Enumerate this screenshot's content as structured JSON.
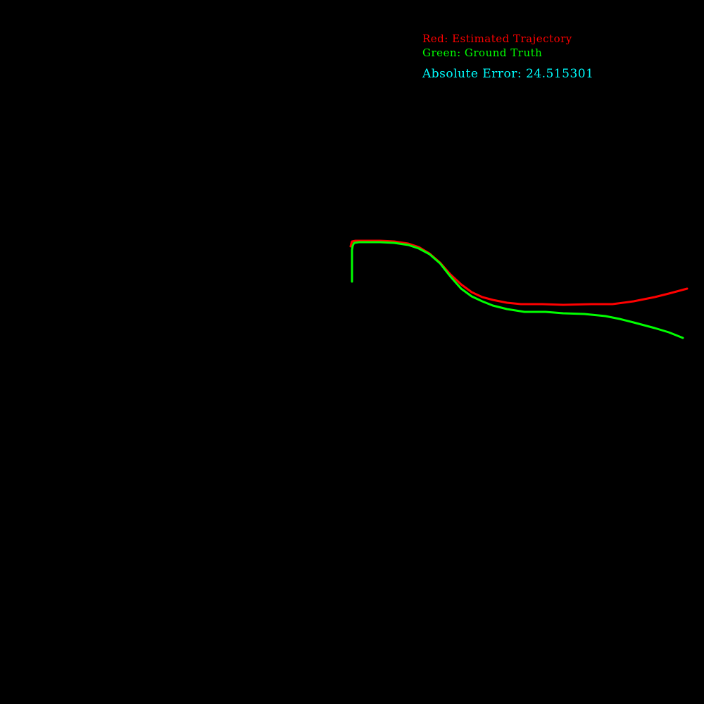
{
  "chart_data": {
    "type": "line",
    "title": "",
    "xlabel": "",
    "ylabel": "",
    "background": "#000000",
    "legend": {
      "placement": "top-right",
      "entries": [
        {
          "text": "Red: Estimated Trajectory",
          "color": "#ff0000"
        },
        {
          "text": "Green: Ground Truth",
          "color": "#00ff00"
        }
      ]
    },
    "annotation": {
      "text": "Absolute Error: 24.515301",
      "color": "#00ffff"
    },
    "xlim": [
      -500,
      500
    ],
    "ylim": [
      -500,
      500
    ],
    "series": [
      {
        "color": "#ff0000",
        "points": [
          [
            -2,
            150
          ],
          [
            -1,
            154
          ],
          [
            0,
            157
          ],
          [
            5,
            158
          ],
          [
            20,
            158
          ],
          [
            40,
            158
          ],
          [
            60,
            157
          ],
          [
            80,
            154
          ],
          [
            95,
            149
          ],
          [
            110,
            140
          ],
          [
            125,
            127
          ],
          [
            140,
            110
          ],
          [
            155,
            96
          ],
          [
            170,
            85
          ],
          [
            185,
            78
          ],
          [
            200,
            74
          ],
          [
            220,
            70
          ],
          [
            240,
            68
          ],
          [
            270,
            68
          ],
          [
            300,
            67
          ],
          [
            340,
            68
          ],
          [
            370,
            68
          ],
          [
            400,
            72
          ],
          [
            430,
            78
          ],
          [
            450,
            83
          ],
          [
            476,
            90
          ]
        ]
      },
      {
        "color": "#00ff00",
        "points": [
          [
            0,
            100
          ],
          [
            0,
            115
          ],
          [
            0,
            130
          ],
          [
            0,
            145
          ],
          [
            1,
            151
          ],
          [
            3,
            155
          ],
          [
            10,
            156
          ],
          [
            20,
            156
          ],
          [
            40,
            156
          ],
          [
            60,
            155
          ],
          [
            80,
            152
          ],
          [
            95,
            147
          ],
          [
            110,
            139
          ],
          [
            125,
            126
          ],
          [
            140,
            107
          ],
          [
            155,
            90
          ],
          [
            170,
            79
          ],
          [
            185,
            72
          ],
          [
            200,
            66
          ],
          [
            220,
            61
          ],
          [
            245,
            57
          ],
          [
            275,
            57
          ],
          [
            300,
            55
          ],
          [
            330,
            54
          ],
          [
            360,
            51
          ],
          [
            380,
            47
          ],
          [
            400,
            42
          ],
          [
            430,
            34
          ],
          [
            450,
            28
          ],
          [
            470,
            20
          ]
        ]
      }
    ]
  }
}
